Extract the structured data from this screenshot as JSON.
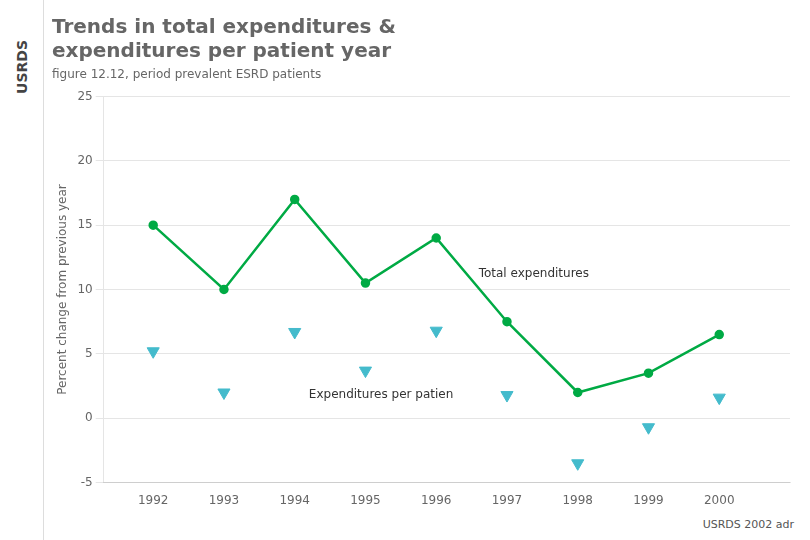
{
  "chart_data": {
    "type": "line",
    "title": [
      "Trends in total expenditures &",
      "expenditures per patient year"
    ],
    "subtitle": "figure 12.12, period prevalent ESRD patients",
    "side_label": "USRDS",
    "footer": "USRDS 2002 adr",
    "ylabel": "Percent change from previous year",
    "x": [
      1992,
      1993,
      1994,
      1995,
      1996,
      1997,
      1998,
      1999,
      2000
    ],
    "series": [
      {
        "type": "line",
        "marker": "circle",
        "color": "#00aa44",
        "values": [
          15,
          10,
          17,
          10.5,
          14,
          7.5,
          2,
          3.5,
          6.5
        ]
      },
      {
        "type": "scatter",
        "marker": "triangle_down",
        "color": "#44bbcc",
        "values": [
          5.2,
          2.0,
          6.7,
          3.7,
          6.8,
          1.8,
          -3.5,
          -0.7,
          1.6
        ]
      }
    ],
    "annotations": [
      {
        "text": "Total expenditures",
        "x": 1996.6,
        "y": 11.2
      },
      {
        "text": "Expenditures per patien",
        "x": 1994.2,
        "y": 1.8
      }
    ],
    "xlim": [
      1991.3,
      2001.0
    ],
    "xticks": [
      1992,
      1993,
      1994,
      1995,
      1996,
      1997,
      1998,
      1999,
      2000
    ],
    "ylim": [
      -5,
      25
    ],
    "yticks": [
      -5,
      0,
      5,
      10,
      15,
      20,
      25
    ],
    "grid": true
  }
}
